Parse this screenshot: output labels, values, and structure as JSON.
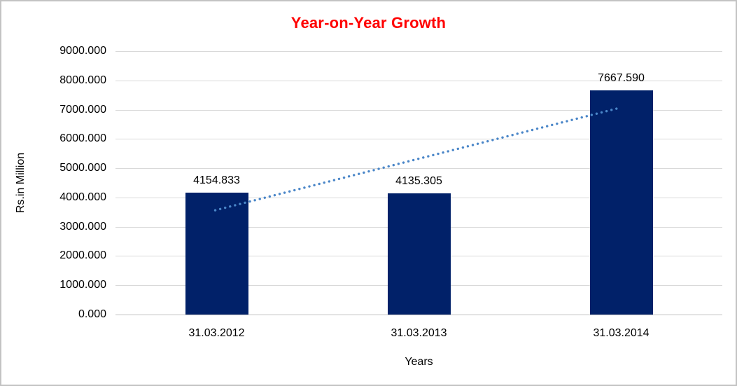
{
  "window": {
    "background": "#ffffff",
    "frame_border_color": "#c3c3c3"
  },
  "chart_data": {
    "type": "bar",
    "title": "Year-on-Year Growth",
    "title_color": "#ff0000",
    "xlabel": "Years",
    "ylabel": "Rs.in Million",
    "categories": [
      "31.03.2012",
      "31.03.2013",
      "31.03.2014"
    ],
    "values": [
      4154.833,
      4135.305,
      7667.59
    ],
    "data_labels": [
      "4154.833",
      "4135.305",
      "7667.590"
    ],
    "ylim": [
      0,
      9000
    ],
    "ytick_step": 1000,
    "ytick_labels": [
      "0.000",
      "1000.000",
      "2000.000",
      "3000.000",
      "4000.000",
      "5000.000",
      "6000.000",
      "7000.000",
      "8000.000",
      "9000.000"
    ],
    "grid": true,
    "legend": "none",
    "bar_color": "#012169",
    "gridline_color": "#d9d9d9",
    "axis_line_color": "#bfbfbf",
    "trendline": {
      "type": "linear",
      "style": "dotted",
      "color": "#4a86c8"
    }
  }
}
